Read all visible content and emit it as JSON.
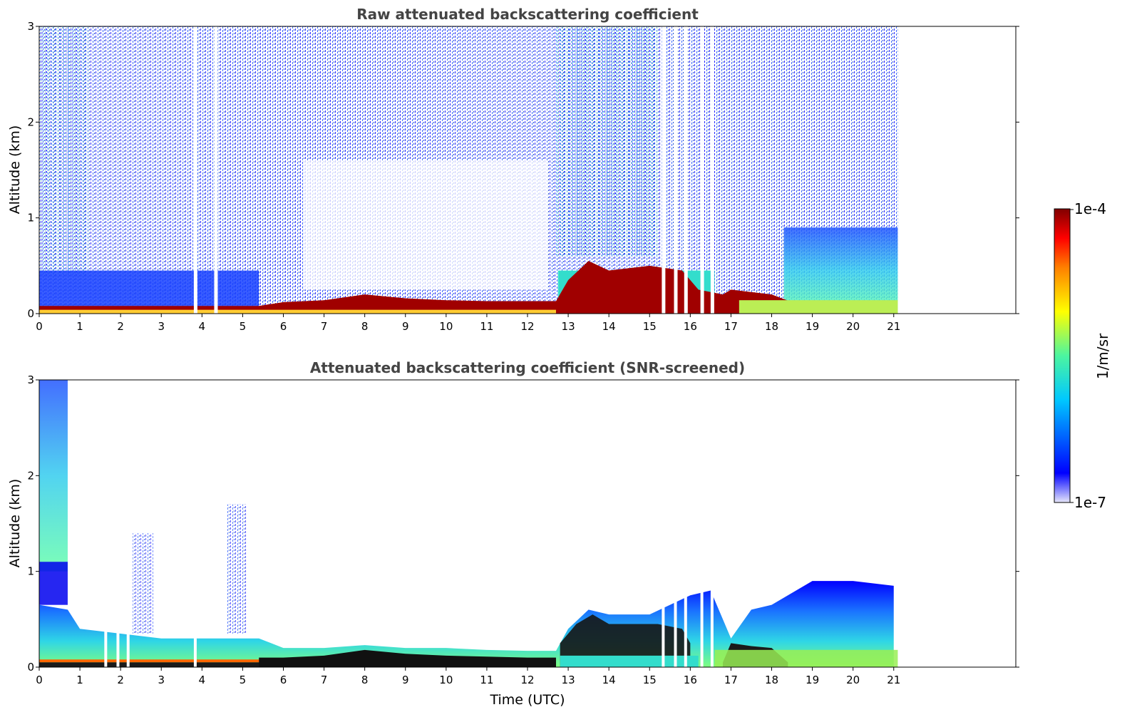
{
  "chart_data": [
    {
      "type": "heatmap",
      "title": "Raw attenuated backscattering coefficient",
      "xlabel": "",
      "ylabel": "Altitude (km)",
      "xlim": [
        0,
        24
      ],
      "ylim": [
        0,
        3
      ],
      "xticks": [
        "0",
        "1",
        "2",
        "3",
        "4",
        "5",
        "6",
        "7",
        "8",
        "9",
        "10",
        "11",
        "12",
        "13",
        "14",
        "15",
        "16",
        "17",
        "18",
        "19",
        "20",
        "21"
      ],
      "yticks": [
        "0",
        "1",
        "2",
        "3"
      ],
      "data_extent_hours": [
        0,
        21.1
      ],
      "layer_top_km": {
        "time_utc": [
          0,
          1,
          2,
          3,
          4,
          5,
          5.4,
          6,
          7,
          8,
          9,
          10,
          11,
          12,
          12.7,
          13,
          13.5,
          14,
          15,
          15.8,
          16.2,
          16.8,
          17,
          18,
          18.5
        ],
        "top_km": [
          0.08,
          0.08,
          0.08,
          0.08,
          0.08,
          0.08,
          0.08,
          0.12,
          0.14,
          0.2,
          0.16,
          0.14,
          0.13,
          0.13,
          0.13,
          0.35,
          0.55,
          0.45,
          0.5,
          0.45,
          0.25,
          0.2,
          0.25,
          0.2,
          0.12
        ]
      }
    },
    {
      "type": "heatmap",
      "title": "Attenuated backscattering coefficient (SNR-screened)",
      "xlabel": "Time (UTC)",
      "ylabel": "Altitude (km)",
      "xlim": [
        0,
        24
      ],
      "ylim": [
        0,
        3
      ],
      "xticks": [
        "0",
        "1",
        "2",
        "3",
        "4",
        "5",
        "6",
        "7",
        "8",
        "9",
        "10",
        "11",
        "12",
        "13",
        "14",
        "15",
        "16",
        "17",
        "18",
        "19",
        "20",
        "21"
      ],
      "yticks": [
        "0",
        "1",
        "2",
        "3"
      ],
      "data_extent_hours": [
        0,
        21.1
      ],
      "boundary_layer_top_km": {
        "time_utc": [
          0,
          0.7,
          1,
          2,
          3,
          4,
          5,
          5.4,
          6,
          7,
          8,
          9,
          10,
          11,
          12,
          12.7,
          13,
          13.5,
          14,
          15,
          16,
          16.5,
          17,
          17.5,
          18,
          19,
          20,
          21
        ],
        "top_km": [
          0.65,
          0.6,
          0.4,
          0.35,
          0.3,
          0.3,
          0.3,
          0.3,
          0.2,
          0.2,
          0.23,
          0.2,
          0.2,
          0.18,
          0.17,
          0.17,
          0.4,
          0.6,
          0.55,
          0.55,
          0.75,
          0.8,
          0.3,
          0.6,
          0.65,
          0.9,
          0.9,
          0.85
        ]
      }
    }
  ],
  "colorbar": {
    "label": "1/m/sr",
    "max_label": "1e-4",
    "min_label": "1e-7",
    "scale": "log",
    "colormap": "jet",
    "colors": [
      "#e6e6fa",
      "#0000ff",
      "#00c8ff",
      "#4cf5a0",
      "#ffff00",
      "#ff8000",
      "#ff0000",
      "#800000"
    ]
  }
}
